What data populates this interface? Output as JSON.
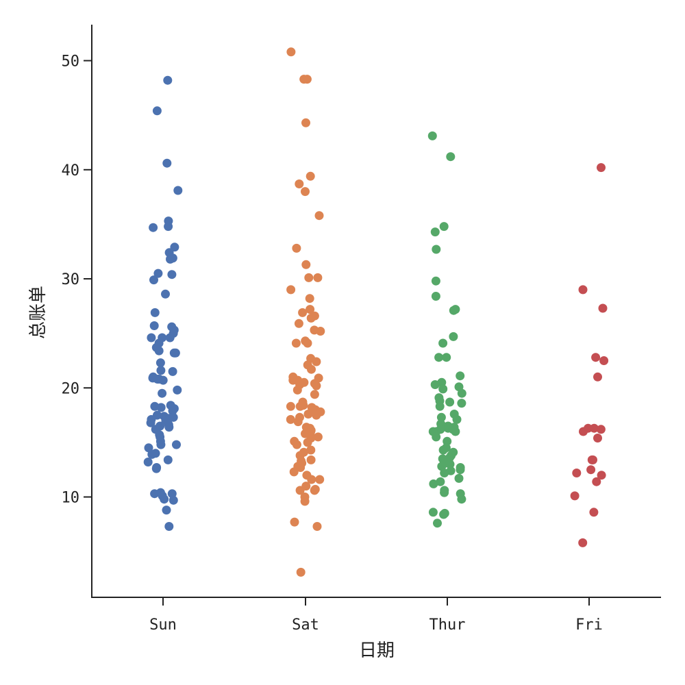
{
  "chart_data": {
    "type": "scatter",
    "subtype": "strip",
    "title": "",
    "xlabel": "日期",
    "ylabel": "总账单",
    "ylim": [
      0.8,
      53.3
    ],
    "yticks": [
      10,
      20,
      30,
      40,
      50
    ],
    "categories": [
      "Sun",
      "Sat",
      "Thur",
      "Fri"
    ],
    "colors": [
      "#4c72b0",
      "#dd8452",
      "#55a868",
      "#c44e52"
    ],
    "series": [
      {
        "name": "Sun",
        "values": [
          48.2,
          45.4,
          40.6,
          38.1,
          35.3,
          34.8,
          34.7,
          32.9,
          32.4,
          31.9,
          31.8,
          30.5,
          30.4,
          29.9,
          28.6,
          26.9,
          25.7,
          25.6,
          25.3,
          25.0,
          24.6,
          24.6,
          24.6,
          24.1,
          23.7,
          23.4,
          23.2,
          23.2,
          22.3,
          21.6,
          21.5,
          21.0,
          20.9,
          20.8,
          20.8,
          20.7,
          19.8,
          19.5,
          18.4,
          18.3,
          18.2,
          18.1,
          17.9,
          17.5,
          17.4,
          17.3,
          17.2,
          17.1,
          17.0,
          16.8,
          16.6,
          16.5,
          16.4,
          16.2,
          15.7,
          15.5,
          15.1,
          14.8,
          14.8,
          14.5,
          14.0,
          13.9,
          13.4,
          13.2,
          12.7,
          12.6,
          10.4,
          10.3,
          10.3,
          10.1,
          9.8,
          9.7,
          8.8,
          7.3
        ]
      },
      {
        "name": "Sat",
        "values": [
          50.8,
          48.3,
          48.3,
          44.3,
          39.4,
          38.7,
          38.0,
          35.8,
          32.8,
          31.3,
          30.1,
          30.1,
          29.0,
          28.2,
          27.2,
          26.9,
          26.6,
          26.4,
          25.9,
          25.3,
          25.2,
          24.3,
          24.1,
          24.1,
          22.7,
          22.4,
          22.1,
          21.7,
          21.0,
          20.9,
          20.7,
          20.7,
          20.5,
          20.4,
          20.3,
          20.2,
          19.8,
          19.4,
          18.7,
          18.4,
          18.3,
          18.3,
          18.2,
          18.0,
          17.9,
          17.8,
          17.6,
          17.5,
          17.3,
          17.1,
          16.9,
          16.4,
          16.3,
          16.1,
          16.0,
          15.8,
          15.7,
          15.5,
          15.4,
          15.1,
          15.0,
          14.8,
          14.3,
          14.1,
          13.8,
          13.4,
          13.3,
          13.1,
          12.8,
          12.7,
          12.3,
          12.0,
          11.6,
          11.6,
          11.0,
          10.7,
          10.6,
          10.6,
          10.0,
          9.6,
          7.7,
          7.3,
          3.1
        ]
      },
      {
        "name": "Thur",
        "values": [
          43.1,
          41.2,
          34.8,
          34.3,
          32.7,
          29.8,
          28.4,
          27.2,
          27.1,
          24.7,
          24.1,
          22.8,
          22.8,
          21.1,
          20.5,
          20.3,
          20.1,
          19.9,
          19.5,
          19.1,
          18.8,
          18.7,
          18.6,
          18.3,
          17.6,
          17.3,
          17.1,
          16.7,
          16.5,
          16.4,
          16.3,
          16.3,
          16.2,
          16.2,
          16.0,
          16.0,
          16.0,
          15.5,
          15.1,
          14.5,
          14.3,
          14.1,
          13.8,
          13.6,
          13.5,
          13.4,
          13.1,
          13.0,
          12.8,
          12.7,
          12.5,
          12.4,
          12.2,
          11.7,
          11.4,
          11.2,
          10.6,
          10.4,
          10.3,
          9.8,
          8.6,
          8.5,
          8.4,
          7.6
        ]
      },
      {
        "name": "Fri",
        "values": [
          40.2,
          29.0,
          27.3,
          22.8,
          22.5,
          21.0,
          16.3,
          16.3,
          16.2,
          16.0,
          15.4,
          13.4,
          13.4,
          12.5,
          12.2,
          12.0,
          11.4,
          10.1,
          8.6,
          5.8
        ]
      }
    ]
  }
}
